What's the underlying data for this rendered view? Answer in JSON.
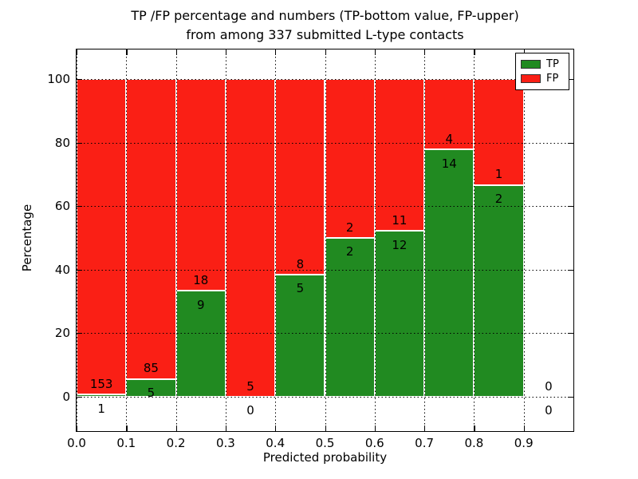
{
  "title": {
    "line1": "TP /FP percentage and numbers (TP-bottom value, FP-upper)",
    "line2": "from among 337 submitted L-type contacts"
  },
  "legend": {
    "entries": [
      {
        "label": "TP",
        "color": "#218a21"
      },
      {
        "label": "FP",
        "color": "#fa1f15"
      }
    ],
    "position": "upper right"
  },
  "colors": {
    "tp": "#218a21",
    "fp": "#fa1f15",
    "grid": "#000000",
    "bar_edge": "#ffffff",
    "background": "#ffffff"
  },
  "chart_data": {
    "type": "bar",
    "stacked": true,
    "normalized": "each bin stacks TP+FP to 100%",
    "title": "TP /FP percentage and numbers (TP-bottom value, FP-upper) from among 337 submitted L-type contacts",
    "xlabel": "Predicted probability",
    "ylabel": "Percentage",
    "xlim": [
      0.0,
      1.0
    ],
    "ylim": [
      -10.9,
      109.3
    ],
    "grid": true,
    "grid_style": "dotted",
    "bin_width": 0.1,
    "bin_starts": [
      0.0,
      0.1,
      0.2,
      0.3,
      0.4,
      0.5,
      0.6,
      0.7,
      0.8,
      0.9
    ],
    "x_tick_labels": [
      "0.0",
      "0.1",
      "0.2",
      "0.3",
      "0.4",
      "0.5",
      "0.6",
      "0.7",
      "0.8",
      "0.9"
    ],
    "y_ticks": [
      0,
      20,
      40,
      60,
      80,
      100
    ],
    "series": [
      {
        "name": "TP",
        "color": "#218a21",
        "counts": [
          1,
          5,
          9,
          0,
          5,
          2,
          12,
          14,
          2,
          0
        ]
      },
      {
        "name": "FP",
        "color": "#fa1f15",
        "counts": [
          153,
          85,
          18,
          5,
          8,
          2,
          11,
          4,
          1,
          0
        ]
      }
    ],
    "tp_percent_per_bin": [
      0.65,
      5.56,
      33.33,
      0.0,
      38.46,
      50.0,
      52.17,
      77.78,
      66.67,
      null
    ],
    "total_contacts": 337
  }
}
